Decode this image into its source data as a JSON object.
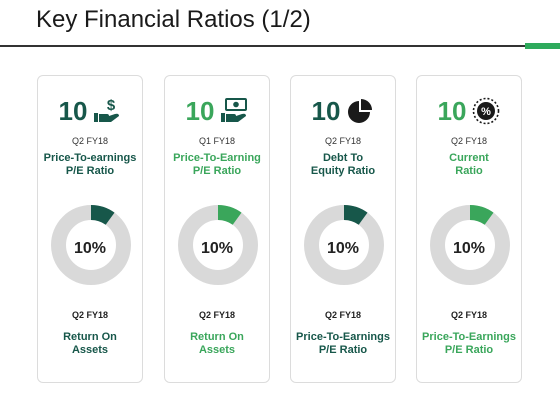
{
  "title": "Key Financial Ratios (1/2)",
  "colors": {
    "dark": "#17574a",
    "green": "#3aa65b",
    "ring": "#d9d9d9"
  },
  "cards": [
    {
      "value": "10",
      "icon": "hand-dollar-icon",
      "period": "Q2 FY18",
      "label": [
        "Price-To-earnings",
        "P/E Ratio"
      ],
      "donut_fraction": 0.1,
      "percent": "10%",
      "bottom_period": "Q2 FY18",
      "bottom_label": [
        "Return On",
        "Assets"
      ],
      "accent": "dark"
    },
    {
      "value": "10",
      "icon": "hand-banknote-icon",
      "period": "Q1 FY18",
      "label": [
        "Price-To-Earning",
        "P/E Ratio"
      ],
      "donut_fraction": 0.1,
      "percent": "10%",
      "bottom_period": "Q2 FY18",
      "bottom_label": [
        "Return On",
        "Assets"
      ],
      "accent": "green"
    },
    {
      "value": "10",
      "icon": "pie-chart-icon",
      "period": "Q2 FY18",
      "label": [
        "Debt To",
        "Equity Ratio"
      ],
      "donut_fraction": 0.1,
      "percent": "10%",
      "bottom_period": "Q2 FY18",
      "bottom_label": [
        "Price-To-Earnings",
        "P/E Ratio"
      ],
      "accent": "dark"
    },
    {
      "value": "10",
      "icon": "percent-badge-icon",
      "period": "Q2 FY18",
      "label": [
        "Current",
        "Ratio"
      ],
      "donut_fraction": 0.1,
      "percent": "10%",
      "bottom_period": "Q2 FY18",
      "bottom_label": [
        "Price-To-Earnings",
        "P/E Ratio"
      ],
      "accent": "green"
    }
  ]
}
